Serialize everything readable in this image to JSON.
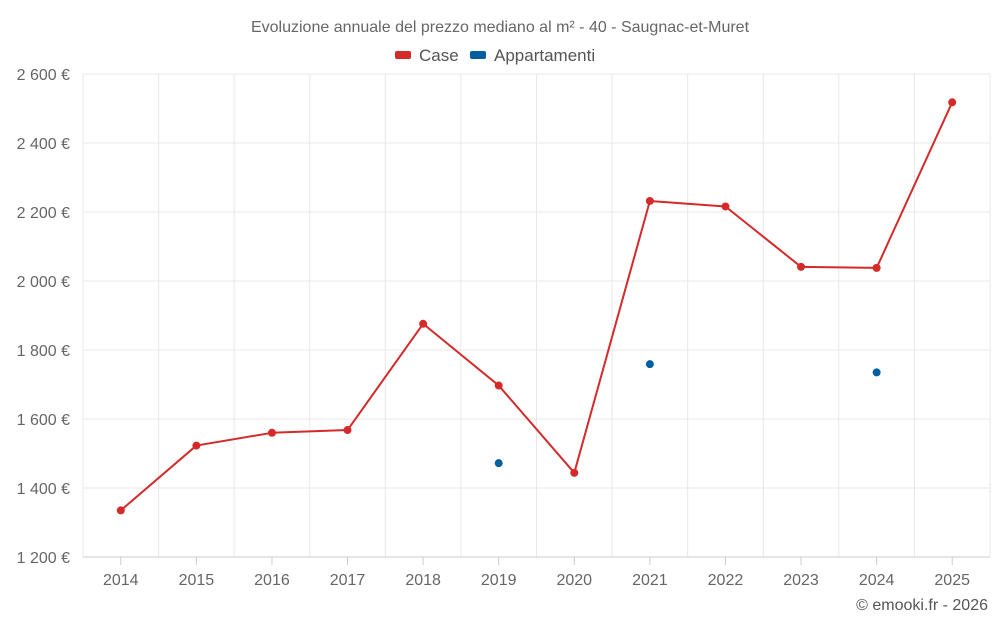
{
  "chart_data": {
    "type": "line",
    "title": "Evoluzione annuale del prezzo mediano al m² - 40 - Saugnac-et-Muret",
    "categories": [
      "2014",
      "2015",
      "2016",
      "2017",
      "2018",
      "2019",
      "2020",
      "2021",
      "2022",
      "2023",
      "2024",
      "2025"
    ],
    "ylim": [
      1200,
      2600
    ],
    "yticks": [
      1200,
      1400,
      1600,
      1800,
      2000,
      2200,
      2400,
      2600
    ],
    "ytick_labels": [
      "1 200 €",
      "1 400 €",
      "1 600 €",
      "1 800 €",
      "2 000 €",
      "2 200 €",
      "2 400 €",
      "2 600 €"
    ],
    "xlabel": "",
    "ylabel": "",
    "grid": true,
    "legend_position": "top-center",
    "series": [
      {
        "name": "Case",
        "color": "#d42a2a",
        "values": [
          1335,
          1523,
          1560,
          1568,
          1876,
          1697,
          1444,
          2232,
          2216,
          2041,
          2038,
          2518
        ]
      },
      {
        "name": "Appartamenti",
        "color": "#005f9e",
        "values": [
          null,
          null,
          null,
          null,
          null,
          1472,
          null,
          1759,
          null,
          null,
          1735,
          null
        ]
      }
    ]
  },
  "credit": "© emooki.fr - 2026"
}
